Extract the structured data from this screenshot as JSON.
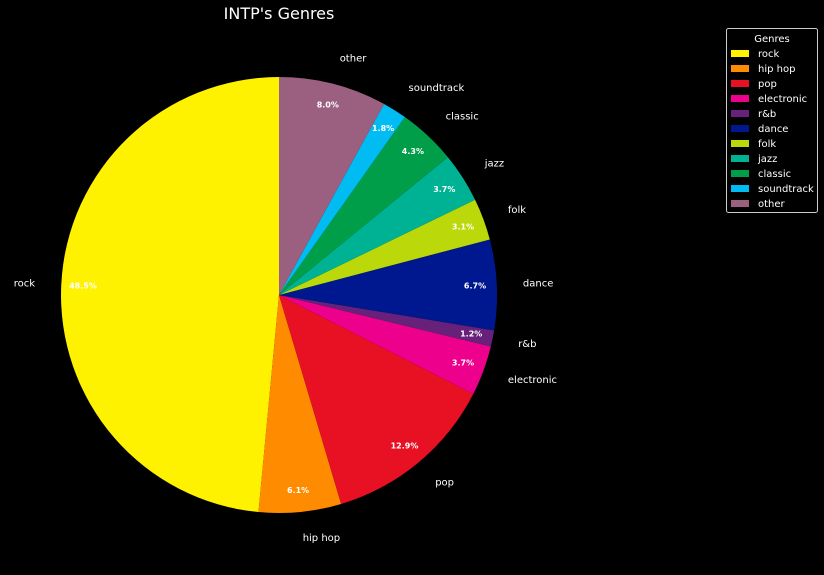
{
  "chart_data": {
    "type": "pie",
    "title": "INTP's Genres",
    "start_angle_deg": 90,
    "direction": "counterclockwise",
    "legend_title": "Genres",
    "legend_position": "top-right",
    "background": "#000000",
    "slices": [
      {
        "label": "rock",
        "value": 48.5,
        "pct_label": "48.5%",
        "color": "#fff200"
      },
      {
        "label": "hip hop",
        "value": 6.1,
        "pct_label": "6.1%",
        "color": "#ff8c00"
      },
      {
        "label": "pop",
        "value": 12.9,
        "pct_label": "12.9%",
        "color": "#e81123"
      },
      {
        "label": "electronic",
        "value": 3.7,
        "pct_label": "3.7%",
        "color": "#ec008c"
      },
      {
        "label": "r&b",
        "value": 1.2,
        "pct_label": "1.2%",
        "color": "#68217a"
      },
      {
        "label": "dance",
        "value": 6.7,
        "pct_label": "6.7%",
        "color": "#00188f"
      },
      {
        "label": "folk",
        "value": 3.1,
        "pct_label": "3.1%",
        "color": "#bad80a"
      },
      {
        "label": "jazz",
        "value": 3.7,
        "pct_label": "3.7%",
        "color": "#00b294"
      },
      {
        "label": "classic",
        "value": 4.3,
        "pct_label": "4.3%",
        "color": "#009e49"
      },
      {
        "label": "soundtrack",
        "value": 1.8,
        "pct_label": "1.8%",
        "color": "#00bcf2"
      },
      {
        "label": "other",
        "value": 8.0,
        "pct_label": "8.0%",
        "color": "#9b6080"
      }
    ]
  }
}
